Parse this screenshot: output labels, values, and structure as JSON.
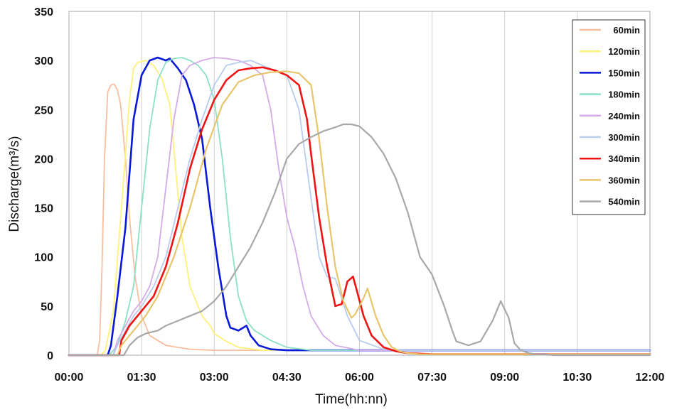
{
  "chart_data": {
    "type": "line",
    "title": "",
    "xlabel": "Time(hh:nn)",
    "ylabel": "Discharge(m³/s)",
    "xlim": [
      "00:00",
      "12:00"
    ],
    "ylim": [
      0,
      350
    ],
    "x_ticks": [
      "00:00",
      "01:30",
      "03:00",
      "04:30",
      "06:00",
      "07:30",
      "09:00",
      "10:30",
      "12:00"
    ],
    "y_ticks": [
      "0",
      "50",
      "100",
      "150",
      "200",
      "250",
      "300",
      "350"
    ],
    "grid": "vertical",
    "legend_position": "top-right",
    "series": [
      {
        "name": "60min",
        "color": "#f7bfa0",
        "width": 1.8,
        "x": [
          "00:00",
          "00:35",
          "00:38",
          "00:41",
          "00:44",
          "00:48",
          "00:52",
          "00:56",
          "01:00",
          "01:04",
          "01:10",
          "01:15",
          "01:22",
          "01:30",
          "01:40",
          "02:00",
          "02:30",
          "03:00",
          "12:00"
        ],
        "y": [
          0,
          0,
          15,
          90,
          200,
          268,
          275,
          276,
          270,
          255,
          200,
          140,
          80,
          40,
          20,
          10,
          6,
          5,
          5
        ]
      },
      {
        "name": "120min",
        "color": "#fff07a",
        "width": 1.8,
        "x": [
          "00:00",
          "00:40",
          "00:45",
          "00:55",
          "01:05",
          "01:15",
          "01:20",
          "01:25",
          "01:35",
          "01:45",
          "01:55",
          "02:05",
          "02:20",
          "02:30",
          "02:45",
          "02:55",
          "03:00",
          "03:15",
          "03:30",
          "04:00",
          "12:00"
        ],
        "y": [
          0,
          0,
          5,
          45,
          150,
          260,
          292,
          298,
          300,
          295,
          282,
          255,
          120,
          70,
          40,
          30,
          22,
          14,
          8,
          5,
          5
        ]
      },
      {
        "name": "150min",
        "color": "#0a18d8",
        "width": 2.6,
        "x": [
          "00:00",
          "00:48",
          "00:52",
          "01:00",
          "01:10",
          "01:20",
          "01:30",
          "01:40",
          "01:50",
          "02:00",
          "02:05",
          "02:15",
          "02:25",
          "02:35",
          "02:45",
          "02:55",
          "03:05",
          "03:15",
          "03:20",
          "03:30",
          "03:40",
          "03:45",
          "03:55",
          "04:10",
          "04:30",
          "05:00",
          "12:00"
        ],
        "y": [
          0,
          0,
          10,
          60,
          130,
          240,
          285,
          300,
          303,
          300,
          302,
          292,
          280,
          255,
          220,
          150,
          90,
          40,
          28,
          25,
          30,
          20,
          10,
          6,
          5,
          5,
          5
        ]
      },
      {
        "name": "180min",
        "color": "#8ce0c4",
        "width": 1.8,
        "x": [
          "00:00",
          "00:50",
          "01:00",
          "01:10",
          "01:20",
          "01:30",
          "01:40",
          "01:50",
          "02:00",
          "02:10",
          "02:20",
          "02:30",
          "02:40",
          "02:50",
          "03:00",
          "03:10",
          "03:20",
          "03:30",
          "03:40",
          "03:50",
          "04:10",
          "04:30",
          "05:00",
          "12:00"
        ],
        "y": [
          0,
          0,
          10,
          35,
          70,
          150,
          230,
          280,
          298,
          302,
          303,
          300,
          295,
          285,
          260,
          200,
          120,
          60,
          35,
          25,
          15,
          8,
          5,
          5
        ]
      },
      {
        "name": "240min",
        "color": "#d4aae8",
        "width": 1.8,
        "x": [
          "00:00",
          "00:55",
          "01:00",
          "01:10",
          "01:20",
          "01:30",
          "01:40",
          "01:50",
          "02:00",
          "02:10",
          "02:20",
          "02:30",
          "02:45",
          "03:00",
          "03:15",
          "03:30",
          "03:45",
          "04:00",
          "04:10",
          "04:20",
          "04:30",
          "04:40",
          "04:50",
          "05:00",
          "05:15",
          "05:30",
          "06:00",
          "12:00"
        ],
        "y": [
          0,
          0,
          15,
          30,
          45,
          55,
          70,
          100,
          170,
          240,
          285,
          295,
          300,
          303,
          302,
          300,
          295,
          285,
          250,
          190,
          140,
          110,
          70,
          40,
          20,
          10,
          5,
          5
        ]
      },
      {
        "name": "300min",
        "color": "#b8cced",
        "width": 1.8,
        "x": [
          "00:00",
          "00:55",
          "01:00",
          "01:10",
          "01:20",
          "01:30",
          "01:45",
          "02:00",
          "02:15",
          "02:30",
          "02:45",
          "03:00",
          "03:15",
          "03:30",
          "03:45",
          "04:00",
          "04:15",
          "04:30",
          "04:45",
          "05:00",
          "05:10",
          "05:20",
          "05:30",
          "05:45",
          "06:00",
          "06:30",
          "07:00",
          "12:00"
        ],
        "y": [
          0,
          0,
          10,
          25,
          40,
          50,
          70,
          100,
          150,
          200,
          240,
          275,
          295,
          298,
          300,
          295,
          290,
          285,
          250,
          160,
          100,
          80,
          78,
          40,
          15,
          6,
          5,
          5
        ]
      },
      {
        "name": "340min",
        "color": "#ef1414",
        "width": 2.6,
        "x": [
          "00:00",
          "01:02",
          "01:05",
          "01:15",
          "01:30",
          "01:45",
          "02:00",
          "02:15",
          "02:30",
          "02:45",
          "03:00",
          "03:15",
          "03:30",
          "03:45",
          "04:00",
          "04:15",
          "04:30",
          "04:45",
          "04:55",
          "05:00",
          "05:10",
          "05:20",
          "05:30",
          "05:38",
          "05:45",
          "05:52",
          "05:57",
          "06:05",
          "06:15",
          "06:30",
          "06:45",
          "07:00",
          "07:30",
          "12:00"
        ],
        "y": [
          0,
          0,
          15,
          30,
          45,
          60,
          90,
          135,
          190,
          230,
          260,
          280,
          290,
          292,
          293,
          290,
          285,
          275,
          240,
          205,
          140,
          90,
          50,
          52,
          75,
          80,
          65,
          40,
          20,
          8,
          4,
          2,
          1,
          1
        ]
      },
      {
        "name": "360min",
        "color": "#e8c56a",
        "width": 2.2,
        "x": [
          "00:00",
          "01:00",
          "01:05",
          "01:20",
          "01:35",
          "01:50",
          "02:10",
          "02:30",
          "02:50",
          "03:10",
          "03:30",
          "03:50",
          "04:10",
          "04:30",
          "04:45",
          "05:00",
          "05:10",
          "05:20",
          "05:30",
          "05:40",
          "05:50",
          "05:55",
          "06:05",
          "06:10",
          "06:20",
          "06:30",
          "06:40",
          "06:50",
          "07:00",
          "07:15",
          "07:30",
          "12:00"
        ],
        "y": [
          0,
          0,
          10,
          25,
          40,
          60,
          100,
          150,
          210,
          255,
          278,
          285,
          288,
          289,
          287,
          275,
          220,
          150,
          90,
          55,
          38,
          42,
          58,
          68,
          40,
          20,
          8,
          4,
          2,
          1,
          1,
          1
        ]
      },
      {
        "name": "540min",
        "color": "#a8a8a8",
        "width": 2.2,
        "x": [
          "00:00",
          "01:08",
          "01:15",
          "01:25",
          "01:35",
          "01:50",
          "02:00",
          "02:15",
          "02:30",
          "02:45",
          "03:00",
          "03:15",
          "03:30",
          "03:45",
          "04:00",
          "04:15",
          "04:30",
          "04:45",
          "05:00",
          "05:15",
          "05:30",
          "05:40",
          "05:50",
          "06:00",
          "06:15",
          "06:30",
          "06:45",
          "07:00",
          "07:15",
          "07:30",
          "07:45",
          "07:55",
          "08:00",
          "08:15",
          "08:30",
          "08:45",
          "08:55",
          "09:05",
          "09:12",
          "09:20",
          "09:30",
          "09:40",
          "09:50",
          "10:00",
          "10:15",
          "10:30",
          "11:00",
          "12:00"
        ],
        "y": [
          0,
          0,
          10,
          18,
          22,
          25,
          30,
          35,
          40,
          45,
          55,
          70,
          90,
          110,
          135,
          165,
          200,
          215,
          222,
          228,
          232,
          235,
          235,
          233,
          222,
          205,
          180,
          145,
          100,
          82,
          50,
          25,
          14,
          10,
          14,
          35,
          55,
          38,
          12,
          5,
          2,
          1,
          1,
          0,
          0,
          0,
          0,
          0
        ]
      }
    ]
  }
}
